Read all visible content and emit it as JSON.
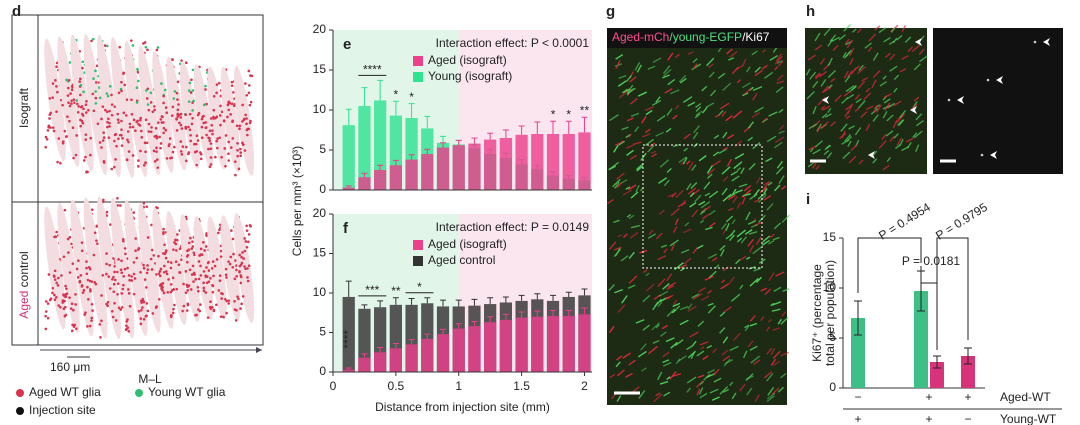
{
  "figure": {
    "d": {
      "label": "d",
      "top_row": "Isograft",
      "aged_word": "Aged",
      "control_word": " control",
      "scale_bar": "160 μm",
      "axis": "M–L",
      "legend": [
        {
          "name": "Aged WT glia",
          "color": "#d8344f"
        },
        {
          "name": "Young WT glia",
          "color": "#2fbf6e"
        },
        {
          "name": "Injection site",
          "color": "#111111"
        }
      ]
    },
    "g": {
      "label": "g",
      "channels": [
        {
          "text": "Aged-mCh",
          "color": "#ff4f8f"
        },
        {
          "text": "/young-EGFP",
          "color": "#4fe07f"
        },
        {
          "text": "/Ki67",
          "color": "#ffffff"
        }
      ]
    },
    "h": {
      "label": "h"
    }
  },
  "chart_data": [
    {
      "type": "bar",
      "label": "e",
      "annotation": "Interaction effect: P < 0.0001",
      "ylabel": "Cells per mm³ (×10³)",
      "xlim": [
        0,
        2.06
      ],
      "ylim": [
        0,
        20
      ],
      "yticks": [
        0,
        5,
        10,
        15,
        20
      ],
      "regions": [
        {
          "from": 0,
          "to": 1,
          "color": "#e2f5e9"
        },
        {
          "from": 1,
          "to": 2.06,
          "color": "#fbe6ef"
        }
      ],
      "x": [
        0.125,
        0.25,
        0.375,
        0.5,
        0.625,
        0.75,
        0.875,
        1,
        1.125,
        1.25,
        1.375,
        1.5,
        1.625,
        1.75,
        1.875,
        2
      ],
      "series": [
        {
          "name": "Aged (isograft)",
          "color": "#ec3f8c",
          "values": [
            0.3,
            1.6,
            2.5,
            3.1,
            3.8,
            4.5,
            5.3,
            5.6,
            5.8,
            6.3,
            6.5,
            6.9,
            7.0,
            7.0,
            7.0,
            7.2
          ],
          "errors": [
            0.2,
            0.5,
            0.6,
            0.6,
            0.6,
            0.6,
            0.6,
            0.6,
            0.7,
            0.8,
            1.0,
            1.1,
            1.5,
            1.6,
            1.6,
            1.9
          ]
        },
        {
          "name": "Young (isograft)",
          "color": "#2fe391",
          "values": [
            8.1,
            10.5,
            11.2,
            9.3,
            9.0,
            7.7,
            5.9,
            5.7,
            5.2,
            4.5,
            4.0,
            3.2,
            2.6,
            1.8,
            1.4,
            1.2
          ],
          "errors": [
            2.0,
            2.3,
            2.5,
            1.8,
            1.8,
            1.5,
            0.8,
            0.5,
            0.5,
            0.6,
            0.6,
            0.6,
            0.5,
            0.5,
            0.4,
            0.4
          ]
        }
      ],
      "stars": [
        {
          "text": "***",
          "x": 0.125,
          "vertical": true
        },
        {
          "text": "****",
          "x": 0.25,
          "x_end": 0.375
        },
        {
          "text": "*",
          "x": 0.5
        },
        {
          "text": "*",
          "x": 0.625
        },
        {
          "text": "*",
          "x": 1.75
        },
        {
          "text": "*",
          "x": 1.875
        },
        {
          "text": "**",
          "x": 2
        }
      ]
    },
    {
      "type": "bar",
      "label": "f",
      "annotation": "Interaction effect: P = 0.0149",
      "xlabel": "Distance from injection site (mm)",
      "xlim": [
        0,
        2.06
      ],
      "xticks": [
        0,
        0.5,
        1,
        1.5,
        2
      ],
      "ylim": [
        0,
        20
      ],
      "yticks": [
        0,
        5,
        10,
        15,
        20
      ],
      "regions": [
        {
          "from": 0,
          "to": 1,
          "color": "#e2f5e9"
        },
        {
          "from": 1,
          "to": 2.06,
          "color": "#fbe6ef"
        }
      ],
      "x": [
        0.125,
        0.25,
        0.375,
        0.5,
        0.625,
        0.75,
        0.875,
        1,
        1.125,
        1.25,
        1.375,
        1.5,
        1.625,
        1.75,
        1.875,
        2
      ],
      "series": [
        {
          "name": "Aged (isograft)",
          "color": "#ec3f8c",
          "values": [
            0.3,
            1.8,
            2.5,
            3.0,
            3.5,
            4.2,
            4.8,
            5.5,
            5.8,
            6.3,
            6.6,
            6.9,
            7.0,
            7.1,
            7.1,
            7.3
          ],
          "errors": [
            0.2,
            0.5,
            0.6,
            0.6,
            0.6,
            0.6,
            0.6,
            0.6,
            0.6,
            0.7,
            0.7,
            0.7,
            0.7,
            0.7,
            0.7,
            0.8
          ]
        },
        {
          "name": "Aged control",
          "color": "#333333",
          "values": [
            9.5,
            8.0,
            8.2,
            8.5,
            8.5,
            8.7,
            8.3,
            8.3,
            8.4,
            8.6,
            8.8,
            9.0,
            9.2,
            9.0,
            9.5,
            9.7
          ],
          "errors": [
            2.0,
            0.5,
            0.8,
            0.9,
            0.8,
            0.7,
            0.8,
            0.8,
            0.8,
            0.8,
            0.7,
            0.7,
            0.7,
            0.7,
            0.6,
            0.8
          ]
        }
      ],
      "stars": [
        {
          "text": "****",
          "x": 0.125,
          "vertical": true
        },
        {
          "text": "***",
          "x": 0.25,
          "x_end": 0.375
        },
        {
          "text": "**",
          "x": 0.5
        },
        {
          "text": "*",
          "x": 0.625,
          "x_end": 0.75
        }
      ]
    },
    {
      "type": "bar",
      "label": "i",
      "ylabel": [
        "Ki67⁺ (percentage",
        "total per population)"
      ],
      "ylim": [
        0,
        15
      ],
      "yticks": [
        0,
        5,
        10,
        15
      ],
      "values": [
        7.0,
        9.7,
        2.6,
        3.2
      ],
      "errors": [
        1.7,
        2.0,
        0.6,
        0.8
      ],
      "colors": [
        "#3dbf86",
        "#3dbf86",
        "#d6337a",
        "#d6337a"
      ],
      "conditions": [
        {
          "name": "Aged-WT",
          "color": "#d6337a",
          "labels": [
            "−",
            "+",
            "+"
          ]
        },
        {
          "name": "Young-WT",
          "color": "#2fb06b",
          "labels": [
            "+",
            "+",
            "−"
          ]
        }
      ],
      "comparisons": [
        "P = 0.4954",
        "P = 0.9795",
        "P = 0.0181"
      ]
    }
  ]
}
